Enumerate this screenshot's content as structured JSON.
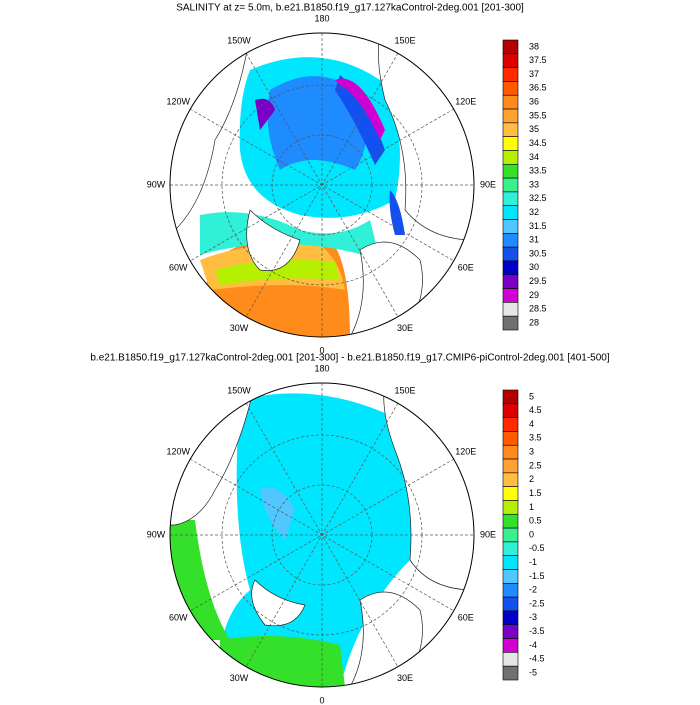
{
  "panels": [
    {
      "title": "SALINITY at z=   5.0m, b.e21.B1850.f19_g17.127kaControl-2deg.001 [201-300]",
      "lon_labels": [
        "180",
        "150E",
        "120E",
        "90E",
        "60E",
        "30E",
        "0",
        "30W",
        "60W",
        "90W",
        "120W",
        "150W"
      ],
      "colorbar": {
        "labels": [
          38,
          37.5,
          37,
          36.5,
          36,
          35.5,
          35,
          34.5,
          34,
          33.5,
          33,
          32.5,
          32,
          31.5,
          31,
          30.5,
          30,
          29.5,
          29,
          28.5,
          28
        ],
        "colors": [
          "#b40000",
          "#dc0000",
          "#ff2a00",
          "#ff5a00",
          "#ff8c1a",
          "#ffa030",
          "#ffbe40",
          "#ffff00",
          "#b4f000",
          "#34e02a",
          "#38f08c",
          "#30f0d8",
          "#00e6ff",
          "#50c8ff",
          "#1e8cff",
          "#1450f0",
          "#0000c8",
          "#7a00c8",
          "#d200d2",
          "#e6e6e6",
          "#707070"
        ]
      }
    },
    {
      "title": "b.e21.B1850.f19_g17.127kaControl-2deg.001 [201-300] - b.e21.B1850.f19_g17.CMIP6-piControl-2deg.001 [401-500]",
      "lon_labels": [
        "180",
        "150E",
        "120E",
        "90E",
        "60E",
        "30E",
        "0",
        "30W",
        "60W",
        "90W",
        "120W",
        "150W"
      ],
      "colorbar": {
        "labels": [
          5,
          4.5,
          4,
          3.5,
          3,
          2.5,
          2,
          1.5,
          1,
          0.5,
          0,
          -0.5,
          -1,
          -1.5,
          -2,
          -2.5,
          -3,
          -3.5,
          -4,
          -4.5,
          -5
        ],
        "colors": [
          "#b40000",
          "#dc0000",
          "#ff2a00",
          "#ff5a00",
          "#ff8c1a",
          "#ffa030",
          "#ffbe40",
          "#ffff00",
          "#b4f000",
          "#34e02a",
          "#38f08c",
          "#30f0d8",
          "#00e6ff",
          "#50c8ff",
          "#1e8cff",
          "#1450f0",
          "#0000c8",
          "#7a00c8",
          "#d200d2",
          "#e6e6e6",
          "#707070"
        ]
      }
    }
  ]
}
